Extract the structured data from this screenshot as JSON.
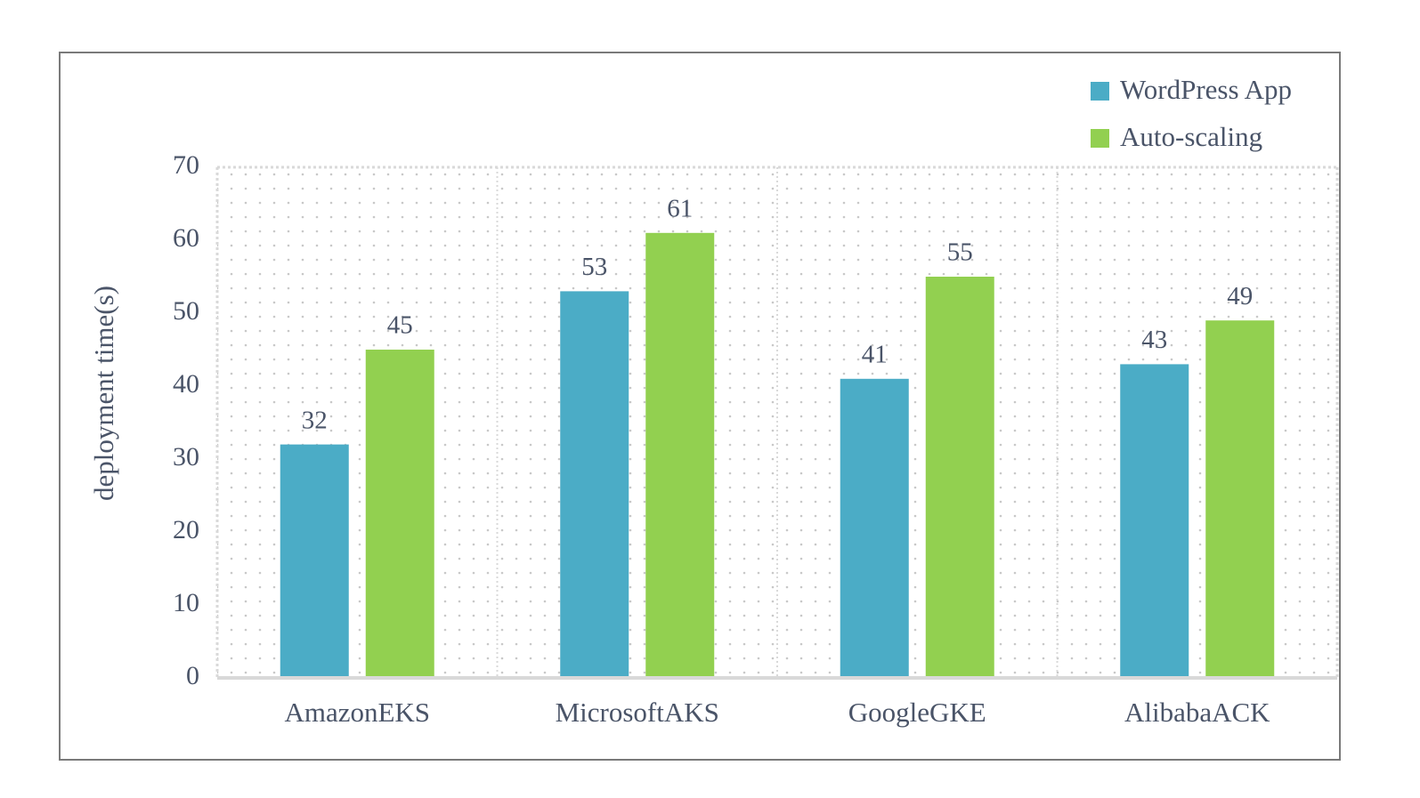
{
  "chart_data": {
    "type": "bar",
    "title": "",
    "xlabel": "",
    "ylabel": "deployment time(s)",
    "ylim": [
      0,
      70
    ],
    "yticks": [
      0,
      10,
      20,
      30,
      40,
      50,
      60,
      70
    ],
    "categories": [
      "AmazonEKS",
      "MicrosoftAKS",
      "GoogleGKE",
      "AlibabaACK"
    ],
    "series": [
      {
        "name": "WordPress App",
        "color": "#4BACC6",
        "values": [
          32,
          53,
          41,
          43
        ]
      },
      {
        "name": "Auto-scaling",
        "color": "#92D050",
        "values": [
          45,
          61,
          55,
          49
        ]
      }
    ],
    "legend_position": "top-right",
    "grid": "dotted"
  }
}
